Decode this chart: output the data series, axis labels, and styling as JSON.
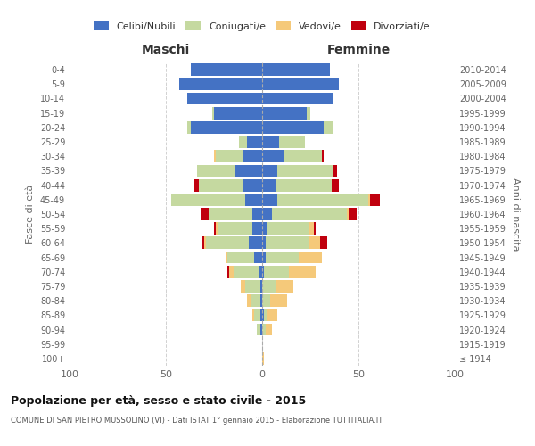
{
  "age_groups": [
    "100+",
    "95-99",
    "90-94",
    "85-89",
    "80-84",
    "75-79",
    "70-74",
    "65-69",
    "60-64",
    "55-59",
    "50-54",
    "45-49",
    "40-44",
    "35-39",
    "30-34",
    "25-29",
    "20-24",
    "15-19",
    "10-14",
    "5-9",
    "0-4"
  ],
  "birth_years": [
    "≤ 1914",
    "1915-1919",
    "1920-1924",
    "1925-1929",
    "1930-1934",
    "1935-1939",
    "1940-1944",
    "1945-1949",
    "1950-1954",
    "1955-1959",
    "1960-1964",
    "1965-1969",
    "1970-1974",
    "1975-1979",
    "1980-1984",
    "1985-1989",
    "1990-1994",
    "1995-1999",
    "2000-2004",
    "2005-2009",
    "2010-2014"
  ],
  "colors": {
    "celibi": "#4472c4",
    "coniugati": "#c5d9a0",
    "vedovi": "#f5c97a",
    "divorziati": "#c0000e"
  },
  "maschi": {
    "celibi": [
      0,
      0,
      1,
      1,
      1,
      1,
      2,
      4,
      7,
      5,
      5,
      9,
      10,
      14,
      10,
      8,
      37,
      25,
      39,
      43,
      37
    ],
    "coniugati": [
      0,
      0,
      2,
      3,
      5,
      8,
      13,
      14,
      22,
      18,
      23,
      38,
      23,
      20,
      14,
      4,
      2,
      1,
      0,
      0,
      0
    ],
    "vedovi": [
      0,
      0,
      0,
      1,
      2,
      2,
      2,
      1,
      1,
      1,
      0,
      0,
      0,
      0,
      1,
      0,
      0,
      0,
      0,
      0,
      0
    ],
    "divorziati": [
      0,
      0,
      0,
      0,
      0,
      0,
      1,
      0,
      1,
      1,
      4,
      0,
      2,
      0,
      0,
      0,
      0,
      0,
      0,
      0,
      0
    ]
  },
  "femmine": {
    "celibi": [
      0,
      0,
      0,
      1,
      0,
      0,
      1,
      2,
      2,
      3,
      5,
      8,
      7,
      8,
      11,
      9,
      32,
      23,
      37,
      40,
      35
    ],
    "coniugati": [
      0,
      0,
      2,
      2,
      4,
      7,
      13,
      17,
      22,
      21,
      39,
      47,
      29,
      29,
      20,
      13,
      5,
      2,
      0,
      0,
      0
    ],
    "vedovi": [
      1,
      0,
      3,
      5,
      9,
      9,
      14,
      12,
      6,
      3,
      1,
      1,
      0,
      0,
      0,
      0,
      0,
      0,
      0,
      0,
      0
    ],
    "divorziati": [
      0,
      0,
      0,
      0,
      0,
      0,
      0,
      0,
      4,
      1,
      4,
      5,
      4,
      2,
      1,
      0,
      0,
      0,
      0,
      0,
      0
    ]
  },
  "xlim": 100,
  "title": "Popolazione per età, sesso e stato civile - 2015",
  "subtitle": "COMUNE DI SAN PIETRO MUSSOLINO (VI) - Dati ISTAT 1° gennaio 2015 - Elaborazione TUTTITALIA.IT",
  "ylabel": "Fasce di età",
  "ylabel_right": "Anni di nascita",
  "xlabel_left": "Maschi",
  "xlabel_right": "Femmine",
  "bg_color": "#ffffff",
  "grid_color": "#cccccc",
  "legend_labels": [
    "Celibi/Nubili",
    "Coniugati/e",
    "Vedovi/e",
    "Divorziati/e"
  ],
  "legend_colors": [
    "#4472c4",
    "#c5d9a0",
    "#f5c97a",
    "#c0000e"
  ]
}
